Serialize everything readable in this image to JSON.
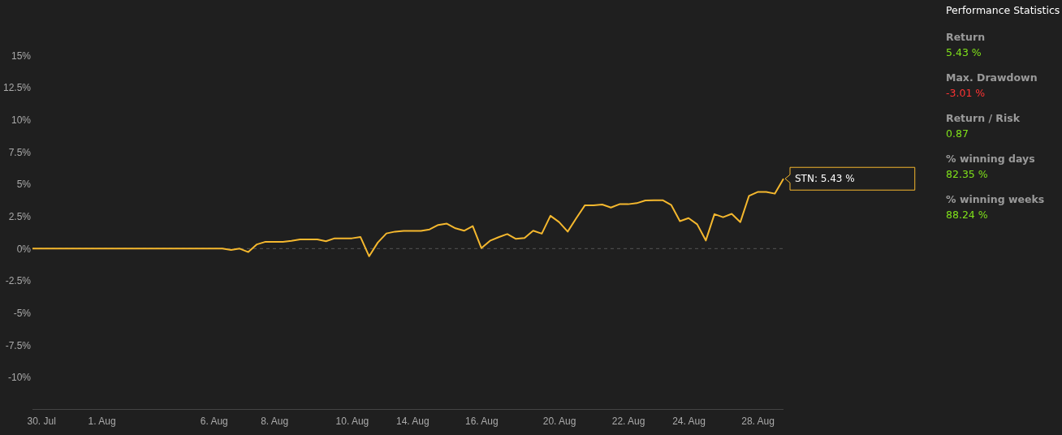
{
  "chart_data": {
    "type": "line",
    "categories": [
      null,
      "30. Jul",
      null,
      null,
      null,
      null,
      null,
      null,
      "1. Aug",
      null,
      null,
      null,
      null,
      null,
      null,
      null,
      null,
      null,
      null,
      null,
      null,
      "6. Aug",
      null,
      null,
      null,
      null,
      null,
      null,
      "8. Aug",
      null,
      null,
      null,
      null,
      null,
      null,
      null,
      null,
      "10. Aug",
      null,
      null,
      null,
      null,
      null,
      null,
      "14. Aug",
      null,
      null,
      null,
      null,
      null,
      null,
      null,
      "16. Aug",
      null,
      null,
      null,
      null,
      null,
      null,
      null,
      null,
      "20. Aug",
      null,
      null,
      null,
      null,
      null,
      null,
      null,
      "22. Aug",
      null,
      null,
      null,
      null,
      null,
      null,
      "24. Aug",
      null,
      null,
      null,
      null,
      null,
      null,
      null,
      "28. Aug",
      null,
      null,
      null
    ],
    "series": [
      {
        "color": "#f5b82e",
        "values": [
          0,
          0,
          0,
          0,
          0,
          0,
          0,
          0,
          0,
          0,
          0,
          0,
          0,
          0,
          0,
          0,
          0,
          0,
          0,
          0,
          0,
          0,
          0,
          -0.1,
          0,
          -0.27,
          0.33,
          0.53,
          0.53,
          0.53,
          0.6,
          0.71,
          0.71,
          0.71,
          0.57,
          0.8,
          0.8,
          0.8,
          0.9,
          -0.6,
          0.47,
          1.18,
          1.32,
          1.37,
          1.37,
          1.37,
          1.49,
          1.84,
          1.94,
          1.58,
          1.39,
          1.75,
          0.04,
          0.61,
          0.89,
          1.13,
          0.76,
          0.83,
          1.39,
          1.16,
          2.55,
          2.06,
          1.32,
          2.37,
          3.37,
          3.37,
          3.43,
          3.19,
          3.45,
          3.45,
          3.53,
          3.74,
          3.76,
          3.76,
          3.38,
          2.13,
          2.37,
          1.89,
          0.63,
          2.68,
          2.44,
          2.7,
          2.06,
          4.1,
          4.4,
          4.4,
          4.27,
          5.43
        ]
      }
    ],
    "ylim": [
      -12.5,
      15
    ],
    "yticks": [
      {
        "value": -10,
        "label": "-10%"
      },
      {
        "value": -7.5,
        "label": "-7.5%"
      },
      {
        "value": -5,
        "label": "-5%"
      },
      {
        "value": -2.5,
        "label": "-2.5%"
      },
      {
        "value": 0,
        "label": "0%"
      },
      {
        "value": 2.5,
        "label": "2.5%"
      },
      {
        "value": 5,
        "label": "5%"
      },
      {
        "value": 7.5,
        "label": "7.5%"
      },
      {
        "value": 10,
        "label": "10%"
      },
      {
        "value": 12.5,
        "label": "12.5%"
      },
      {
        "value": 15,
        "label": "15%"
      }
    ],
    "grid": false,
    "marker": "none",
    "line_style": "solid",
    "ref_lines": [
      {
        "axis": "y",
        "value": 0,
        "color": "#555555",
        "line_style": "dashed"
      }
    ],
    "annotations": [
      "STN: 5.43 %",
      "Performance Statistics",
      "Return",
      "5.43 %",
      "Max. Drawdown",
      "-3.01 %",
      "Return / Risk",
      "0.87",
      "% winning days",
      "82.35 %",
      "% winning weeks",
      "88.24 %"
    ]
  }
}
